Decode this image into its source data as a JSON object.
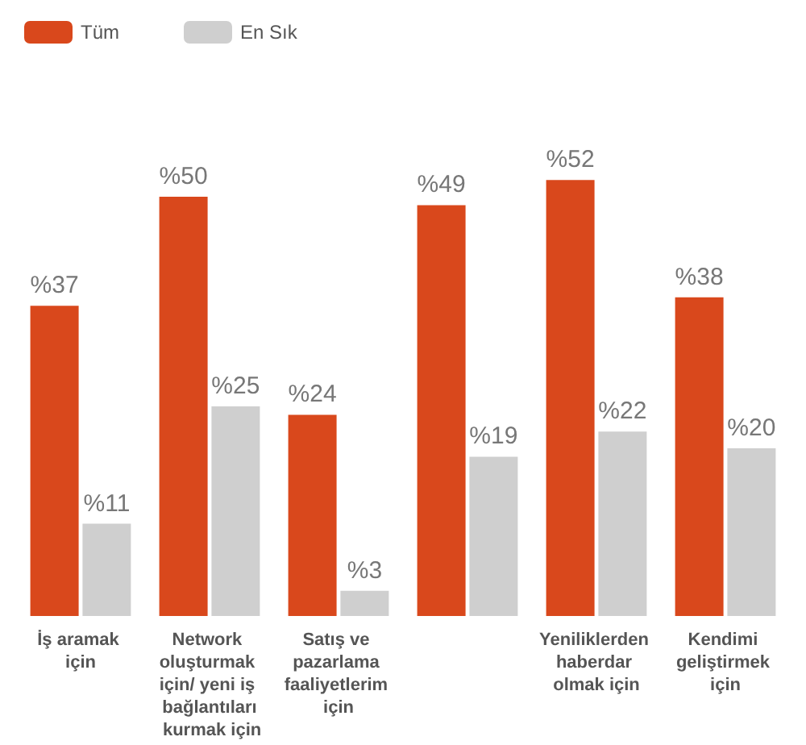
{
  "chart_data": {
    "type": "bar",
    "categories": [
      "İş aramak için",
      "Network oluşturmak için/ yeni iş bağlantıları kurmak için",
      "Satış ve pazarlama faaliyetlerim için",
      null,
      "Yeniliklerden haberdar olmak için",
      "Kendimi geliştirmek için"
    ],
    "series": [
      {
        "name": "Tüm",
        "color": "#d9481c",
        "values": [
          37,
          50,
          24,
          49,
          52,
          38
        ],
        "value_labels": [
          "%37",
          "%50",
          "%24",
          "%49",
          "%52",
          "%38"
        ]
      },
      {
        "name": "En Sık",
        "color": "#cfcfcf",
        "values": [
          11,
          25,
          3,
          19,
          22,
          20
        ],
        "value_labels": [
          "%11",
          "%25",
          "%3",
          "%19",
          "%22",
          "%20"
        ]
      }
    ],
    "legend": "top left"
  }
}
